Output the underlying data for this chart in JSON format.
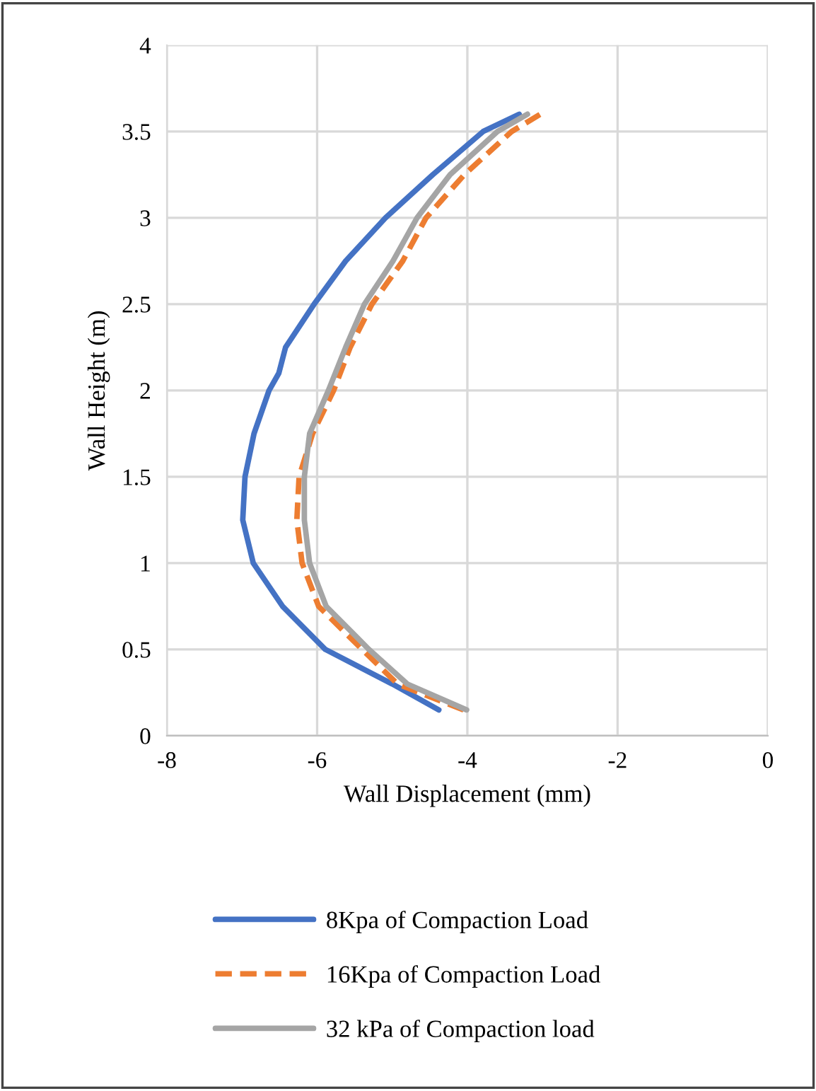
{
  "chart_data": {
    "type": "line",
    "xlabel": "Wall Displacement (mm)",
    "ylabel": "Wall Height (m)",
    "xlim": [
      -8,
      0
    ],
    "xticks": [
      -8,
      -6,
      -4,
      -2,
      0
    ],
    "ylim": [
      0,
      4
    ],
    "yticks": [
      0,
      0.5,
      1,
      1.5,
      2,
      2.5,
      3,
      3.5,
      4
    ],
    "grid": true,
    "legend": "bottom",
    "marker": "none",
    "series": [
      {
        "name": "8Kpa of Compaction Load",
        "color": "#4472c4",
        "line_style": "solid",
        "x": [
          -4.38,
          -5.0,
          -5.89,
          -6.46,
          -6.85,
          -6.99,
          -6.96,
          -6.84,
          -6.64,
          -6.51,
          -6.42,
          -6.04,
          -5.62,
          -5.09,
          -4.46,
          -3.79,
          -3.31
        ],
        "values": [
          0.15,
          0.3,
          0.5,
          0.75,
          1.0,
          1.25,
          1.5,
          1.75,
          2.0,
          2.1,
          2.25,
          2.5,
          2.75,
          3.0,
          3.25,
          3.5,
          3.6
        ]
      },
      {
        "name": "16Kpa of Compaction Load",
        "color": "#ed7d31",
        "line_style": "dashed",
        "x": [
          -4.05,
          -4.93,
          -5.4,
          -5.98,
          -6.2,
          -6.27,
          -6.24,
          -6.06,
          -5.78,
          -5.56,
          -5.27,
          -4.86,
          -4.55,
          -4.04,
          -3.41,
          -3.03
        ],
        "values": [
          0.15,
          0.3,
          0.5,
          0.75,
          1.0,
          1.25,
          1.5,
          1.75,
          2.0,
          2.25,
          2.5,
          2.75,
          3.0,
          3.25,
          3.5,
          3.6
        ]
      },
      {
        "name": "32 kPa of Compaction load",
        "color": "#a5a5a5",
        "line_style": "solid",
        "x": [
          -4.01,
          -4.8,
          -5.31,
          -5.88,
          -6.1,
          -6.17,
          -6.17,
          -6.1,
          -5.85,
          -5.62,
          -5.37,
          -4.99,
          -4.67,
          -4.23,
          -3.6,
          -3.2
        ],
        "values": [
          0.15,
          0.3,
          0.5,
          0.75,
          1.0,
          1.25,
          1.5,
          1.75,
          2.0,
          2.25,
          2.5,
          2.75,
          3.0,
          3.25,
          3.5,
          3.6
        ]
      }
    ]
  }
}
